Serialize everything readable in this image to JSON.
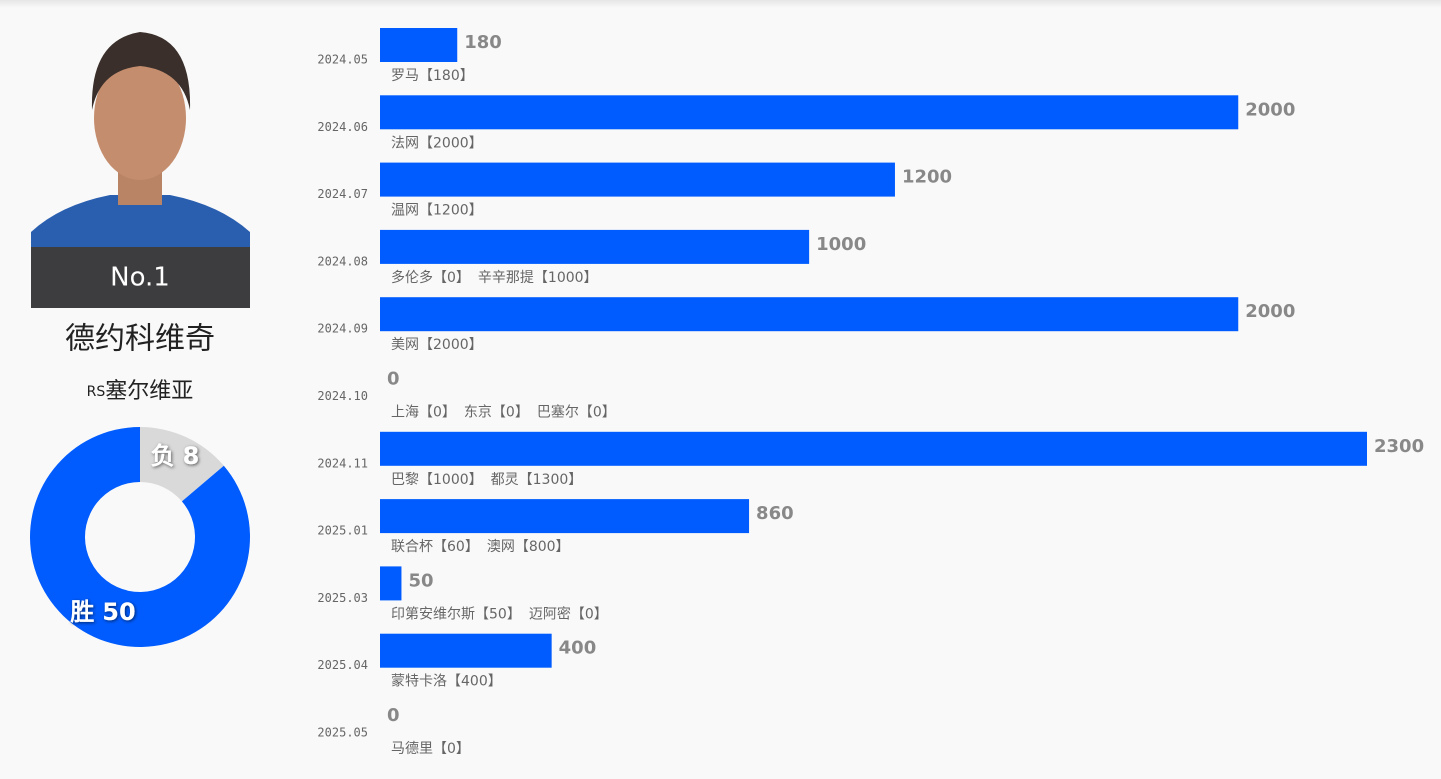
{
  "player": {
    "rank": "No.1",
    "name": "德约科维奇",
    "country_code": "RS",
    "country": "塞尔维亚"
  },
  "chart_data": [
    {
      "type": "pie",
      "categories": [
        "负",
        "胜"
      ],
      "values": [
        8,
        50
      ],
      "colors": [
        "#d9d9d9",
        "#005cff"
      ]
    },
    {
      "type": "bar",
      "orientation": "horizontal",
      "color": "#005cff",
      "categories": [
        "2024.05",
        "2024.06",
        "2024.07",
        "2024.08",
        "2024.09",
        "2024.10",
        "2024.11",
        "2025.01",
        "2025.03",
        "2025.04",
        "2025.05"
      ],
      "values": [
        180,
        2000,
        1200,
        1000,
        2000,
        0,
        2300,
        860,
        50,
        400,
        0
      ],
      "details": [
        [
          "罗马【180】"
        ],
        [
          "法网【2000】"
        ],
        [
          "温网【1200】"
        ],
        [
          "多伦多【0】",
          "辛辛那提【1000】"
        ],
        [
          "美网【2000】"
        ],
        [
          "上海【0】",
          "东京【0】",
          "巴塞尔【0】"
        ],
        [
          "巴黎【1000】",
          "都灵【1300】"
        ],
        [
          "联合杯【60】",
          "澳网【800】"
        ],
        [
          "印第安维尔斯【50】",
          "迈阿密【0】"
        ],
        [
          "蒙特卡洛【400】"
        ],
        [
          "马德里【0】"
        ]
      ]
    }
  ]
}
